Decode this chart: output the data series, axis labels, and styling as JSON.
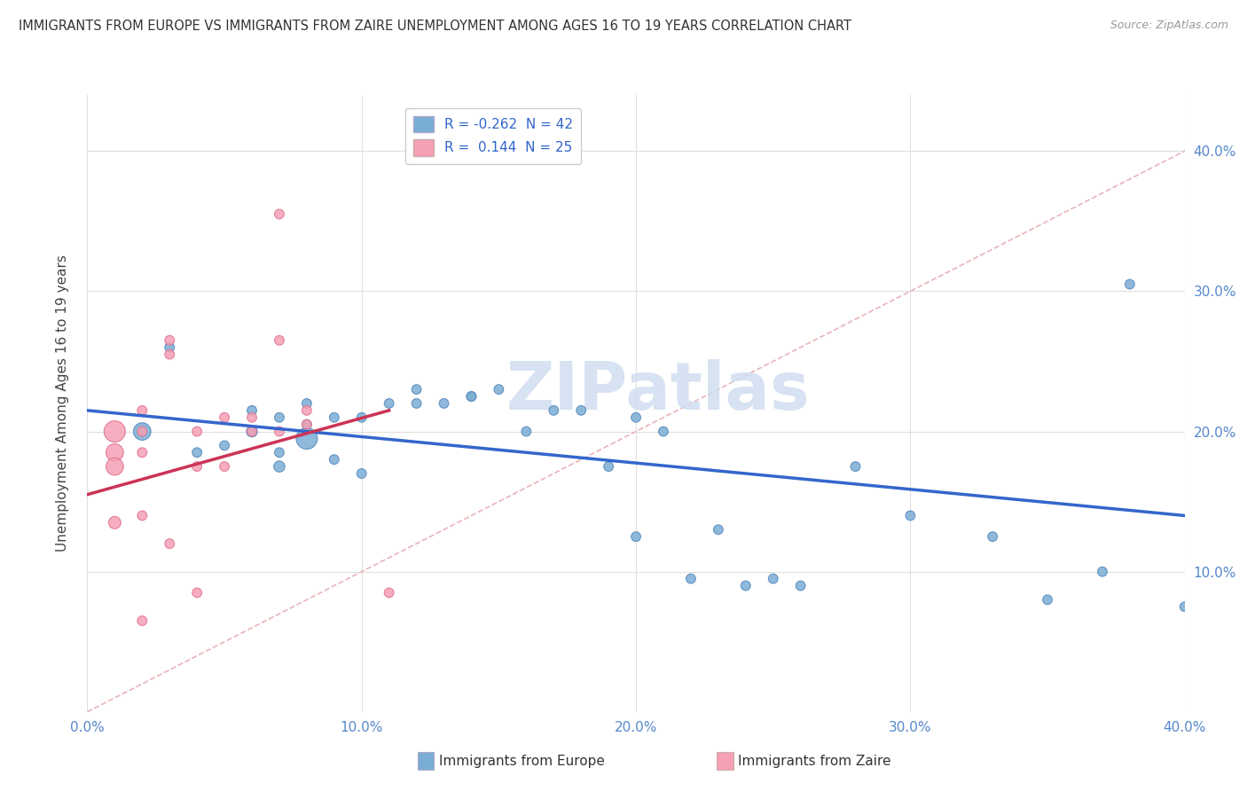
{
  "title": "IMMIGRANTS FROM EUROPE VS IMMIGRANTS FROM ZAIRE UNEMPLOYMENT AMONG AGES 16 TO 19 YEARS CORRELATION CHART",
  "source": "Source: ZipAtlas.com",
  "ylabel": "Unemployment Among Ages 16 to 19 years",
  "xlim": [
    0.0,
    0.4
  ],
  "ylim": [
    0.0,
    0.44
  ],
  "yticks": [
    0.1,
    0.2,
    0.3,
    0.4
  ],
  "xticks": [
    0.0,
    0.1,
    0.2,
    0.3,
    0.4
  ],
  "legend_entries": [
    {
      "label_r": "R = ",
      "label_rv": "-0.262",
      "label_n": "  N = ",
      "label_nv": "42",
      "color": "#aac4e8"
    },
    {
      "label_r": "R =  ",
      "label_rv": "0.144",
      "label_n": "  N = ",
      "label_nv": "25",
      "color": "#f5b8c4"
    }
  ],
  "blue_scatter": {
    "color": "#7aadd4",
    "edge_color": "#5588bb",
    "x": [
      0.02,
      0.03,
      0.04,
      0.05,
      0.06,
      0.06,
      0.07,
      0.07,
      0.07,
      0.08,
      0.08,
      0.08,
      0.09,
      0.09,
      0.1,
      0.1,
      0.11,
      0.12,
      0.12,
      0.13,
      0.14,
      0.14,
      0.15,
      0.16,
      0.17,
      0.18,
      0.19,
      0.2,
      0.2,
      0.21,
      0.22,
      0.23,
      0.24,
      0.25,
      0.26,
      0.28,
      0.3,
      0.33,
      0.35,
      0.37,
      0.38,
      0.4
    ],
    "y": [
      0.2,
      0.26,
      0.185,
      0.19,
      0.2,
      0.215,
      0.175,
      0.21,
      0.185,
      0.22,
      0.205,
      0.195,
      0.21,
      0.18,
      0.21,
      0.17,
      0.22,
      0.23,
      0.22,
      0.22,
      0.225,
      0.225,
      0.23,
      0.2,
      0.215,
      0.215,
      0.175,
      0.125,
      0.21,
      0.2,
      0.095,
      0.13,
      0.09,
      0.095,
      0.09,
      0.175,
      0.14,
      0.125,
      0.08,
      0.1,
      0.305,
      0.075
    ],
    "sizes": [
      200,
      60,
      60,
      60,
      80,
      60,
      80,
      60,
      60,
      60,
      60,
      300,
      60,
      60,
      60,
      60,
      60,
      60,
      60,
      60,
      60,
      60,
      60,
      60,
      60,
      60,
      60,
      60,
      60,
      60,
      60,
      60,
      60,
      60,
      60,
      60,
      60,
      60,
      60,
      60,
      60,
      60
    ]
  },
  "pink_scatter": {
    "color": "#f5a0b5",
    "edge_color": "#e07090",
    "x": [
      0.01,
      0.01,
      0.01,
      0.01,
      0.02,
      0.02,
      0.02,
      0.02,
      0.02,
      0.03,
      0.03,
      0.03,
      0.04,
      0.04,
      0.04,
      0.05,
      0.05,
      0.06,
      0.06,
      0.07,
      0.07,
      0.07,
      0.08,
      0.08,
      0.11
    ],
    "y": [
      0.2,
      0.185,
      0.175,
      0.135,
      0.215,
      0.2,
      0.185,
      0.14,
      0.065,
      0.265,
      0.255,
      0.12,
      0.2,
      0.175,
      0.085,
      0.21,
      0.175,
      0.21,
      0.2,
      0.355,
      0.265,
      0.2,
      0.215,
      0.205,
      0.085
    ],
    "sizes": [
      300,
      200,
      200,
      100,
      60,
      60,
      60,
      60,
      60,
      60,
      60,
      60,
      60,
      60,
      60,
      60,
      60,
      60,
      60,
      60,
      60,
      60,
      60,
      60,
      60
    ]
  },
  "blue_line": {
    "x": [
      0.0,
      0.4
    ],
    "y": [
      0.215,
      0.14
    ],
    "color": "#3366cc",
    "linewidth": 2.5
  },
  "pink_line": {
    "x": [
      0.0,
      0.11
    ],
    "y": [
      0.155,
      0.215
    ],
    "color": "#cc3355",
    "linewidth": 2.5
  },
  "diagonal_line": {
    "x": [
      0.0,
      0.44
    ],
    "y": [
      0.0,
      0.44
    ],
    "color": "#e8b4b8",
    "linewidth": 1.2,
    "linestyle": "--"
  },
  "watermark": "ZIPatlas",
  "watermark_color": "#d0ddf0",
  "background_color": "#ffffff",
  "grid_color": "#e0e0e0"
}
